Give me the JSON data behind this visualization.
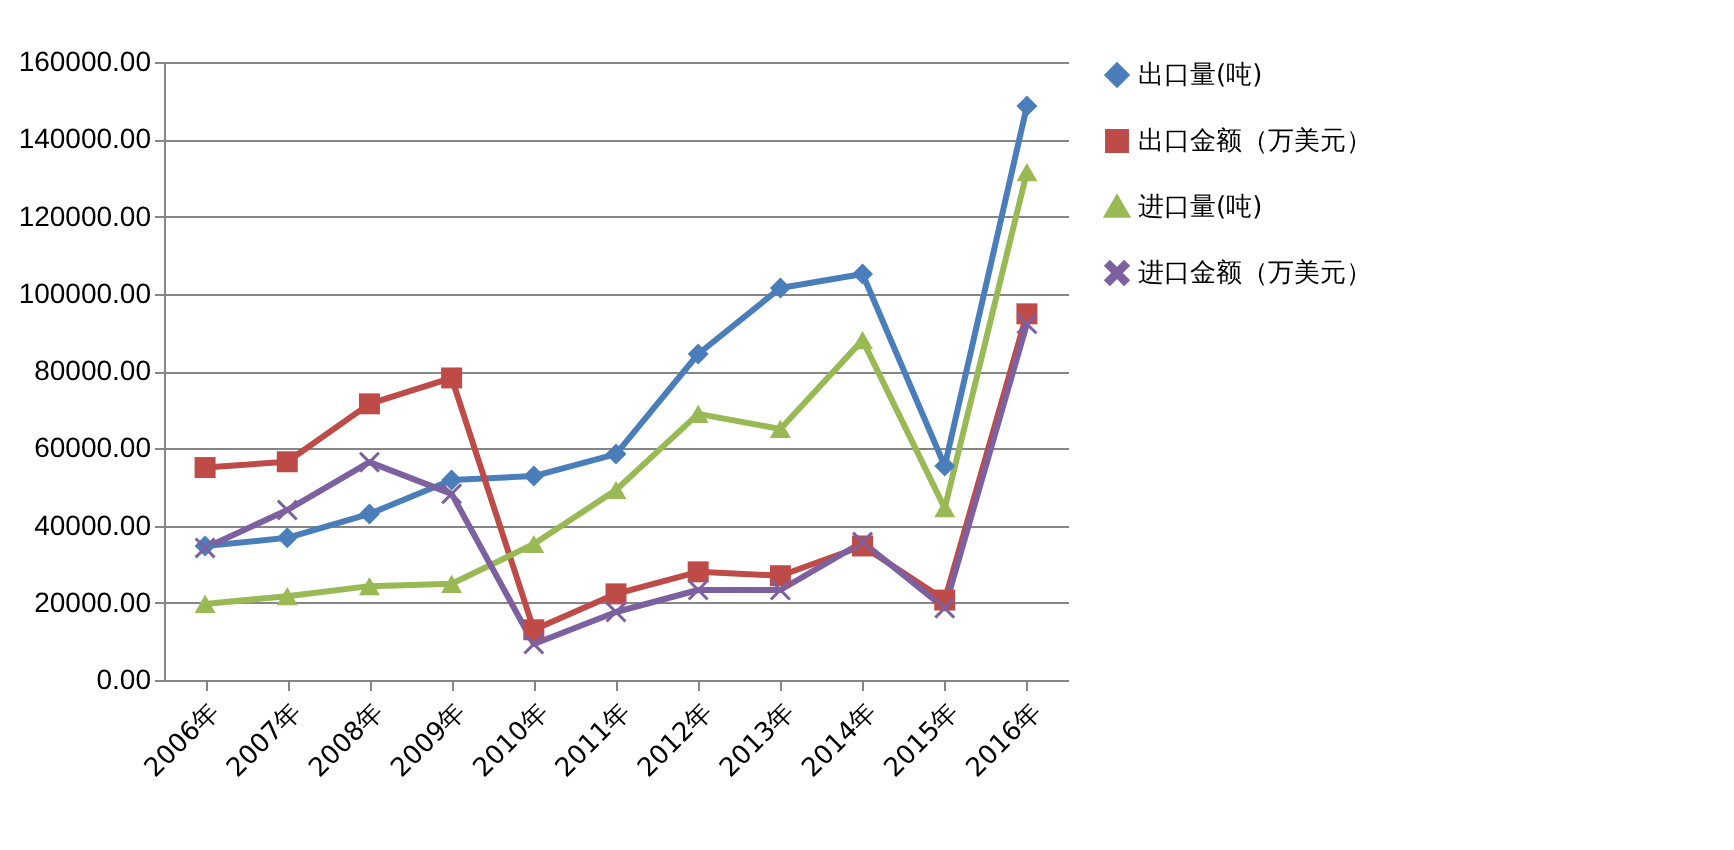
{
  "chart_data": {
    "type": "line",
    "categories": [
      "2006年",
      "2007年",
      "2008年",
      "2009年",
      "2010年",
      "2011年",
      "2012年",
      "2013年",
      "2014年",
      "2015年",
      "2016年"
    ],
    "series": [
      {
        "name": "出口量(吨)",
        "color": "#4a7ebb",
        "marker": "diamond",
        "values": [
          34700,
          36800,
          43000,
          51800,
          52800,
          58500,
          84400,
          101500,
          105100,
          55400,
          148600
        ]
      },
      {
        "name": "出口金额（万美元）",
        "color": "#be4b48",
        "marker": "square",
        "values": [
          55000,
          56500,
          71500,
          78200,
          13000,
          22300,
          28000,
          27000,
          34700,
          20700,
          94800
        ]
      },
      {
        "name": "进口量(吨)",
        "color": "#98b954",
        "marker": "triangle",
        "values": [
          19700,
          21700,
          24300,
          24900,
          35200,
          49200,
          68900,
          65000,
          88000,
          44500,
          131500
        ]
      },
      {
        "name": "进口金额（万美元）",
        "color": "#7d60a0",
        "marker": "cross",
        "values": [
          34200,
          44000,
          56400,
          48200,
          9300,
          17600,
          23300,
          23300,
          35700,
          18600,
          92200
        ]
      }
    ],
    "ylim": [
      0,
      160000
    ],
    "yticks": [
      {
        "value": 0,
        "label": "0.00"
      },
      {
        "value": 20000,
        "label": "20000.00"
      },
      {
        "value": 40000,
        "label": "40000.00"
      },
      {
        "value": 60000,
        "label": "60000.00"
      },
      {
        "value": 80000,
        "label": "80000.00"
      },
      {
        "value": 100000,
        "label": "100000.00"
      },
      {
        "value": 120000,
        "label": "120000.00"
      },
      {
        "value": 140000,
        "label": "140000.00"
      },
      {
        "value": 160000,
        "label": "160000.00"
      }
    ],
    "grid": "y",
    "legend": "right"
  }
}
